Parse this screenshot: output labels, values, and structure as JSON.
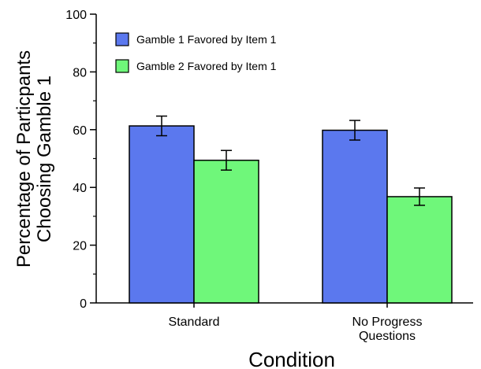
{
  "chart_data": {
    "type": "bar",
    "categories": [
      [
        "Standard"
      ],
      [
        "No Progress",
        "Questions"
      ]
    ],
    "series": [
      {
        "name": "Gamble 1 Favored by Item 1",
        "color": "#5b78ee",
        "values": [
          61.3,
          59.8
        ],
        "errors": [
          3.4,
          3.4
        ]
      },
      {
        "name": "Gamble 2 Favored by Item 1",
        "color": "#6ff77a",
        "values": [
          49.4,
          36.8
        ],
        "errors": [
          3.4,
          3.0
        ]
      }
    ],
    "xlabel": "Condition",
    "ylabel": [
      "Percentage of Particpants",
      "Choosing Gamble 1"
    ],
    "ylim": [
      0,
      100
    ],
    "yticks": [
      0,
      20,
      40,
      60,
      80,
      100
    ],
    "legend_position": "top-left",
    "grid": false
  }
}
